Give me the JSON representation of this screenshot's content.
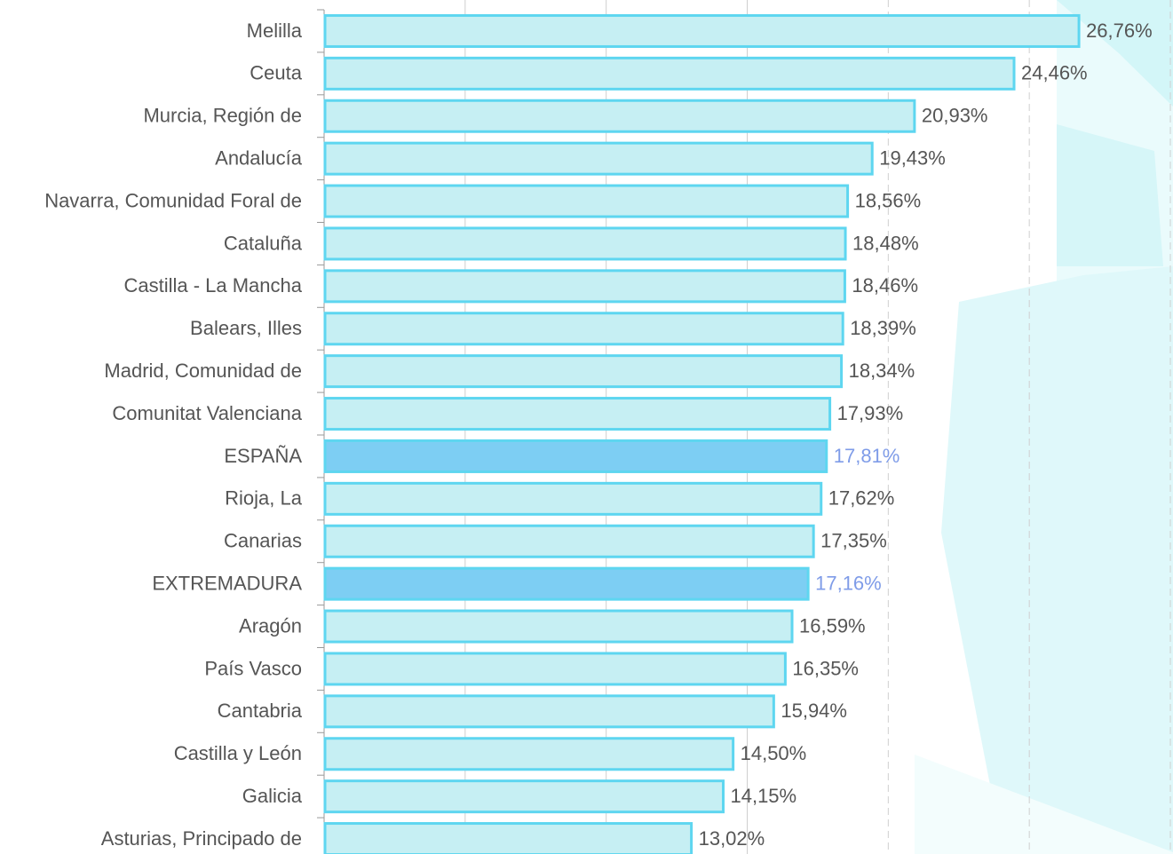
{
  "chart_data": {
    "type": "hbar",
    "categories": [
      "Melilla",
      "Ceuta",
      "Murcia, Región de",
      "Andalucía",
      "Navarra, Comunidad Foral de",
      "Cataluña",
      "Castilla - La Mancha",
      "Balears, Illes",
      "Madrid, Comunidad de",
      "Comunitat Valenciana",
      "ESPAÑA",
      "Rioja, La",
      "Canarias",
      "EXTREMADURA",
      "Aragón",
      "País Vasco",
      "Cantabria",
      "Castilla y León",
      "Galicia",
      "Asturias, Principado de"
    ],
    "values": [
      26.76,
      24.46,
      20.93,
      19.43,
      18.56,
      18.48,
      18.46,
      18.39,
      18.34,
      17.93,
      17.81,
      17.62,
      17.35,
      17.16,
      16.59,
      16.35,
      15.94,
      14.5,
      14.15,
      13.02
    ],
    "value_labels": [
      "26,76%",
      "24,46%",
      "20,93%",
      "19,43%",
      "18,56%",
      "18,48%",
      "18,46%",
      "18,39%",
      "18,34%",
      "17,93%",
      "17,81%",
      "17,62%",
      "17,35%",
      "17,16%",
      "16,59%",
      "16,35%",
      "15,94%",
      "14,50%",
      "14,15%",
      "13,02%"
    ],
    "colors": [
      "#c6eff3",
      "#c6eff3",
      "#c6eff3",
      "#c6eff3",
      "#c6eff3",
      "#c6eff3",
      "#c6eff3",
      "#c6eff3",
      "#c6eff3",
      "#c6eff3",
      "#7dcef3",
      "#c6eff3",
      "#c6eff3",
      "#7dcef3",
      "#c6eff3",
      "#c6eff3",
      "#c6eff3",
      "#c6eff3",
      "#c6eff3",
      "#c6eff3"
    ],
    "label_colors": [
      "#555555",
      "#555555",
      "#555555",
      "#555555",
      "#555555",
      "#555555",
      "#555555",
      "#555555",
      "#555555",
      "#555555",
      "#7f9ce8",
      "#555555",
      "#555555",
      "#7f9ce8",
      "#555555",
      "#555555",
      "#555555",
      "#555555",
      "#555555",
      "#555555"
    ],
    "edge_color": "#5ed6f0",
    "xlim": [
      0,
      30
    ],
    "xticks": [
      5,
      10,
      15,
      20,
      25,
      30
    ],
    "grid": true
  }
}
